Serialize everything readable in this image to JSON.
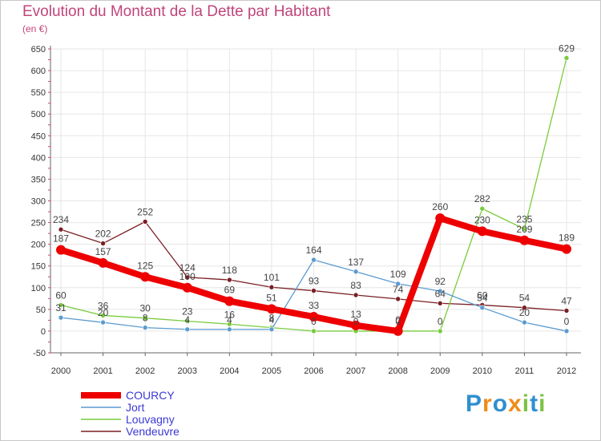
{
  "colors": {
    "title": "#c0457a",
    "legend_text": "#3a3ad6",
    "axis": "#666666",
    "grid": "#e6e6e6",
    "tick_red": "#d04070"
  },
  "chart_data": {
    "type": "line",
    "title": "Evolution du Montant de la Dette par Habitant",
    "subtitle": "(en €)",
    "x": [
      "2000",
      "2001",
      "2002",
      "2003",
      "2004",
      "2005",
      "2006",
      "2007",
      "2008",
      "2009",
      "2010",
      "2011",
      "2012"
    ],
    "ylim": [
      -50,
      650
    ],
    "yticks": [
      -50,
      0,
      50,
      100,
      150,
      200,
      250,
      300,
      350,
      400,
      450,
      500,
      550,
      600,
      650
    ],
    "grid": true,
    "legend_position": "bottom-left",
    "series": [
      {
        "name": "Vendeuvre",
        "color": "#7a1f24",
        "width": 1.3,
        "marker": 3,
        "values": [
          234,
          202,
          252,
          124,
          118,
          101,
          93,
          83,
          74,
          64,
          60,
          54,
          47
        ]
      },
      {
        "name": "Louvagny",
        "color": "#79cc3d",
        "width": 1.3,
        "marker": 3,
        "values": [
          60,
          36,
          30,
          23,
          16,
          8,
          0,
          0,
          0,
          0,
          282,
          235,
          629
        ]
      },
      {
        "name": "Jort",
        "color": "#5b9bd0",
        "width": 1.3,
        "marker": 3,
        "values": [
          31,
          20,
          8,
          4,
          4,
          4,
          164,
          137,
          109,
          92,
          54,
          20,
          0
        ]
      },
      {
        "name": "COURCY",
        "color": "#ee0000",
        "width": 8,
        "marker": 6,
        "values": [
          187,
          157,
          125,
          100,
          69,
          51,
          33,
          13,
          0,
          260,
          230,
          209,
          189
        ]
      }
    ],
    "legend": [
      "COURCY",
      "Jort",
      "Louvagny",
      "Vendeuvre"
    ]
  },
  "logo": {
    "letters": [
      {
        "ch": "P",
        "color": "#2f8fd0"
      },
      {
        "ch": "r",
        "color": "#f08b1a"
      },
      {
        "ch": "o",
        "color": "#2f8fd0"
      },
      {
        "ch": "x",
        "color": "#f08b1a"
      },
      {
        "ch": "i",
        "color": "#7cc243"
      },
      {
        "ch": "t",
        "color": "#2f8fd0"
      },
      {
        "ch": "i",
        "color": "#7cc243"
      }
    ]
  }
}
